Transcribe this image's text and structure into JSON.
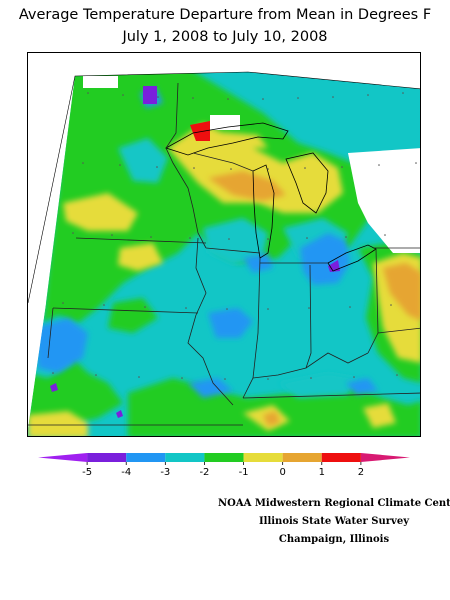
{
  "map": {
    "title_line1": "Average Temperature Departure from Mean in Degrees F",
    "title_line2": "July 1, 2008 to July 10, 2008",
    "region": "Midwest United States",
    "layers": [
      "state-borders",
      "great-lakes",
      "graticule",
      "temperature-departure-shading"
    ]
  },
  "legend": {
    "min": -6,
    "max": 3,
    "tick_labels": [
      "-5",
      "-4",
      "-3",
      "-2",
      "-1",
      "0",
      "1",
      "2"
    ],
    "bins": [
      {
        "from": -6,
        "to": -5,
        "color": "#a020f0"
      },
      {
        "from": -5,
        "to": -4,
        "color": "#7a1fdc"
      },
      {
        "from": -4,
        "to": -3,
        "color": "#2196f3"
      },
      {
        "from": -3,
        "to": -2,
        "color": "#12c6c6"
      },
      {
        "from": -2,
        "to": -1,
        "color": "#22cc22"
      },
      {
        "from": -1,
        "to": 0,
        "color": "#e6dc3a"
      },
      {
        "from": 0,
        "to": 1,
        "color": "#e6a531"
      },
      {
        "from": 1,
        "to": 2,
        "color": "#ee0f0f"
      },
      {
        "from": 2,
        "to": 3,
        "color": "#d81a72"
      }
    ]
  },
  "credits": {
    "line1": "NOAA Midwestern Regional Climate Cent",
    "line2": "Illinois State Water Survey",
    "line3": "Champaign, Illinois"
  },
  "colors": {
    "purple": "#7a1fdc",
    "blue": "#2196f3",
    "cyan": "#12c6c6",
    "green": "#22cc22",
    "yellow": "#e6dc3a",
    "orange": "#e6a531",
    "red": "#ee0f0f"
  }
}
